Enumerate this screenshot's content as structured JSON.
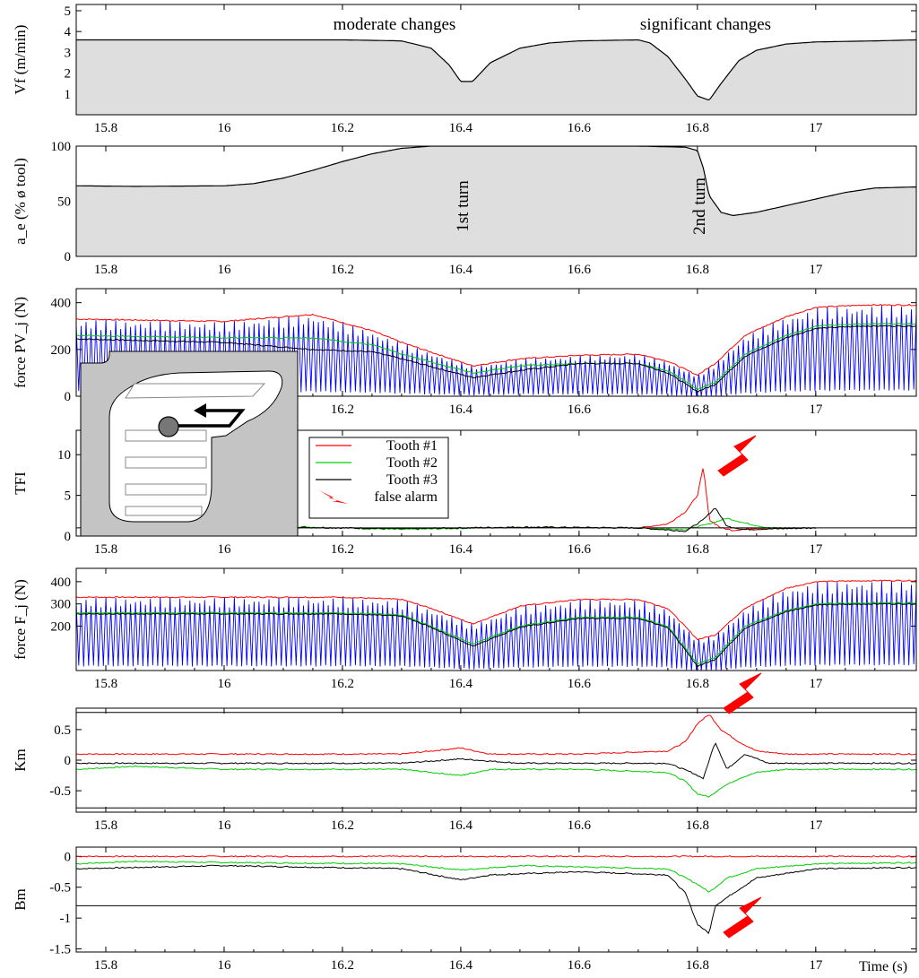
{
  "chart_data": [
    {
      "type": "area",
      "ylabel": "Vf (m/min)",
      "ylim": [
        0,
        5.3
      ],
      "yticks": [
        1,
        2,
        3,
        4,
        5
      ],
      "annotations": [
        "moderate changes",
        "significant changes"
      ],
      "series": [
        {
          "x": [
            15.75,
            16.0,
            16.2,
            16.3,
            16.35,
            16.38,
            16.4,
            16.42,
            16.45,
            16.5,
            16.55,
            16.6,
            16.7,
            16.72,
            16.75,
            16.78,
            16.8,
            16.82,
            16.84,
            16.87,
            16.9,
            16.95,
            17.0,
            17.1,
            17.17
          ],
          "values": [
            3.6,
            3.6,
            3.6,
            3.55,
            3.2,
            2.4,
            1.6,
            1.6,
            2.5,
            3.2,
            3.45,
            3.55,
            3.6,
            3.45,
            2.8,
            1.7,
            0.9,
            0.7,
            1.5,
            2.6,
            3.1,
            3.4,
            3.5,
            3.55,
            3.6
          ]
        }
      ]
    },
    {
      "type": "area",
      "ylabel": "a_e (% ø tool)",
      "ylim": [
        0,
        100
      ],
      "yticks": [
        0,
        50,
        100
      ],
      "annotations": [
        {
          "text": "1st turn",
          "x": 16.4
        },
        {
          "text": "2nd turn",
          "x": 16.8
        }
      ],
      "series": [
        {
          "x": [
            15.75,
            15.85,
            16.0,
            16.05,
            16.1,
            16.15,
            16.2,
            16.25,
            16.3,
            16.35,
            16.5,
            16.6,
            16.7,
            16.78,
            16.8,
            16.81,
            16.82,
            16.84,
            16.86,
            16.9,
            17.0,
            17.05,
            17.1,
            17.17
          ],
          "values": [
            64,
            63.5,
            64,
            66,
            71,
            78,
            86,
            93,
            98,
            100,
            100,
            100,
            100,
            99,
            96,
            80,
            55,
            40,
            37,
            40,
            52,
            58,
            62,
            63
          ]
        }
      ]
    },
    {
      "type": "line",
      "ylabel": "force PV_j (N)",
      "ylim": [
        0,
        460
      ],
      "yticks": [
        0,
        200,
        400
      ],
      "series": [
        {
          "name": "Tooth #1",
          "color": "#ff0000",
          "x": [
            15.75,
            16.0,
            16.15,
            16.25,
            16.3,
            16.42,
            16.5,
            16.6,
            16.7,
            16.75,
            16.8,
            16.83,
            16.88,
            16.95,
            17.0,
            17.08,
            17.17
          ],
          "values": [
            330,
            320,
            350,
            280,
            230,
            130,
            160,
            175,
            180,
            150,
            90,
            140,
            260,
            340,
            380,
            390,
            390
          ]
        },
        {
          "name": "Tooth #2",
          "color": "#00cc00",
          "x": [
            15.75,
            16.0,
            16.15,
            16.25,
            16.3,
            16.42,
            16.5,
            16.6,
            16.7,
            16.75,
            16.8,
            16.83,
            16.88,
            16.95,
            17.0,
            17.08,
            17.17
          ],
          "values": [
            260,
            250,
            250,
            220,
            180,
            100,
            130,
            140,
            140,
            110,
            30,
            60,
            180,
            260,
            300,
            310,
            310
          ]
        },
        {
          "name": "Tooth #3",
          "color": "#000000",
          "x": [
            15.75,
            16.0,
            16.15,
            16.25,
            16.3,
            16.42,
            16.5,
            16.6,
            16.7,
            16.75,
            16.8,
            16.83,
            16.88,
            16.95,
            17.0,
            17.08,
            17.17
          ],
          "values": [
            245,
            230,
            200,
            190,
            160,
            80,
            110,
            140,
            140,
            100,
            20,
            50,
            170,
            250,
            290,
            300,
            300
          ]
        },
        {
          "name": "PV envelope",
          "color": "#0000ff",
          "x": [
            15.75,
            16.0,
            16.15,
            16.25,
            16.3,
            16.42,
            16.5,
            16.6,
            16.7,
            16.75,
            16.8,
            16.83,
            16.88,
            16.95,
            17.0,
            17.08,
            17.17
          ],
          "values": [
            330,
            320,
            350,
            280,
            230,
            130,
            160,
            175,
            180,
            150,
            90,
            140,
            260,
            340,
            380,
            390,
            390
          ]
        }
      ],
      "inset": true
    },
    {
      "type": "line",
      "ylabel": "TFI",
      "ylim": [
        0,
        13
      ],
      "yticks": [
        0,
        5,
        10
      ],
      "threshold": 1,
      "legend": [
        "Tooth #1",
        "Tooth #2",
        "Tooth #3",
        "false alarm"
      ],
      "series": [
        {
          "name": "Tooth #1",
          "color": "#ff0000",
          "x": [
            15.78,
            16.1,
            16.3,
            16.5,
            16.7,
            16.75,
            16.78,
            16.8,
            16.81,
            16.82,
            16.84,
            16.86,
            16.9,
            17.0
          ],
          "values": [
            1,
            1.1,
            0.9,
            1.1,
            1,
            1.5,
            3,
            5,
            8.5,
            2,
            1,
            0.7,
            1,
            1
          ]
        },
        {
          "name": "Tooth #2",
          "color": "#00cc00",
          "x": [
            15.78,
            16.1,
            16.3,
            16.5,
            16.7,
            16.78,
            16.82,
            16.85,
            16.88,
            16.92,
            17.0
          ],
          "values": [
            1,
            1.2,
            0.8,
            1.1,
            1,
            0.8,
            1.5,
            2.2,
            1.6,
            1,
            1
          ]
        },
        {
          "name": "Tooth #3",
          "color": "#000000",
          "x": [
            15.78,
            16.1,
            16.3,
            16.5,
            16.7,
            16.78,
            16.81,
            16.83,
            16.85,
            16.88,
            17.0
          ],
          "values": [
            1,
            1.1,
            0.9,
            1.1,
            1,
            0.6,
            2,
            3.5,
            1.2,
            0.8,
            1
          ]
        }
      ]
    },
    {
      "type": "line",
      "ylabel": "force F_j (N)",
      "ylim": [
        0,
        460
      ],
      "yticks": [
        200,
        300,
        400
      ],
      "series": [
        {
          "name": "Tooth #1",
          "color": "#ff0000",
          "x": [
            15.75,
            16.0,
            16.2,
            16.3,
            16.35,
            16.42,
            16.5,
            16.6,
            16.7,
            16.75,
            16.8,
            16.83,
            16.88,
            16.95,
            17.0,
            17.1,
            17.17
          ],
          "values": [
            330,
            330,
            330,
            320,
            280,
            210,
            290,
            320,
            320,
            280,
            140,
            160,
            280,
            370,
            400,
            405,
            405
          ]
        },
        {
          "name": "Tooth #2",
          "color": "#00cc00",
          "x": [
            15.75,
            16.0,
            16.2,
            16.3,
            16.35,
            16.42,
            16.5,
            16.6,
            16.7,
            16.75,
            16.8,
            16.83,
            16.88,
            16.95,
            17.0,
            17.1,
            17.17
          ],
          "values": [
            260,
            260,
            260,
            250,
            200,
            120,
            200,
            240,
            240,
            200,
            30,
            60,
            200,
            270,
            300,
            305,
            305
          ]
        },
        {
          "name": "Tooth #3",
          "color": "#000000",
          "x": [
            15.75,
            16.0,
            16.2,
            16.3,
            16.35,
            16.42,
            16.5,
            16.6,
            16.7,
            16.75,
            16.8,
            16.83,
            16.88,
            16.95,
            17.0,
            17.1,
            17.17
          ],
          "values": [
            255,
            255,
            255,
            245,
            195,
            110,
            195,
            235,
            235,
            195,
            20,
            50,
            190,
            265,
            295,
            300,
            300
          ]
        },
        {
          "name": "F envelope",
          "color": "#0000ff",
          "x": [
            15.75,
            16.0,
            16.2,
            16.3,
            16.35,
            16.42,
            16.5,
            16.6,
            16.7,
            16.75,
            16.8,
            16.83,
            16.88,
            16.95,
            17.0,
            17.1,
            17.17
          ],
          "values": [
            330,
            330,
            330,
            320,
            280,
            210,
            290,
            320,
            320,
            280,
            140,
            160,
            280,
            370,
            400,
            405,
            405
          ]
        }
      ]
    },
    {
      "type": "line",
      "ylabel": "Km",
      "ylim": [
        -0.85,
        0.85
      ],
      "yticks": [
        -0.5,
        0,
        0.5
      ],
      "thresholds": [
        0.78,
        -0.78
      ],
      "series": [
        {
          "name": "Tooth #1",
          "color": "#ff0000",
          "x": [
            15.75,
            16.0,
            16.3,
            16.4,
            16.45,
            16.6,
            16.75,
            16.78,
            16.8,
            16.82,
            16.84,
            16.87,
            16.9,
            16.95,
            17.0,
            17.17
          ],
          "values": [
            0.1,
            0.1,
            0.1,
            0.2,
            0.1,
            0.1,
            0.15,
            0.3,
            0.6,
            0.75,
            0.5,
            0.3,
            0.15,
            0.1,
            0.1,
            0.1
          ]
        },
        {
          "name": "Tooth #2",
          "color": "#00cc00",
          "x": [
            15.75,
            15.85,
            16.0,
            16.3,
            16.4,
            16.45,
            16.6,
            16.75,
            16.78,
            16.8,
            16.82,
            16.84,
            16.87,
            16.9,
            16.95,
            17.0,
            17.17
          ],
          "values": [
            -0.15,
            -0.1,
            -0.15,
            -0.15,
            -0.25,
            -0.15,
            -0.15,
            -0.2,
            -0.35,
            -0.55,
            -0.6,
            -0.45,
            -0.3,
            -0.2,
            -0.15,
            -0.15,
            -0.15
          ]
        },
        {
          "name": "Tooth #3",
          "color": "#000000",
          "x": [
            15.75,
            16.0,
            16.3,
            16.4,
            16.5,
            16.75,
            16.79,
            16.81,
            16.83,
            16.85,
            16.88,
            16.92,
            17.0,
            17.17
          ],
          "values": [
            -0.05,
            -0.05,
            -0.05,
            0.02,
            -0.05,
            -0.05,
            -0.2,
            -0.3,
            0.3,
            -0.15,
            0.1,
            -0.05,
            -0.05,
            -0.05
          ]
        }
      ]
    },
    {
      "type": "line",
      "ylabel": "Bm",
      "xlabel": "Time (s)",
      "ylim": [
        -1.55,
        0.15
      ],
      "yticks": [
        -1.5,
        -1,
        -0.5,
        0
      ],
      "thresholds": [
        -0.8
      ],
      "series": [
        {
          "name": "Tooth #1",
          "color": "#ff0000",
          "x": [
            15.75,
            17.17
          ],
          "values": [
            0,
            0
          ]
        },
        {
          "name": "Tooth #2",
          "color": "#00cc00",
          "x": [
            15.75,
            15.85,
            16.0,
            16.3,
            16.4,
            16.5,
            16.75,
            16.8,
            16.82,
            16.85,
            16.9,
            17.0,
            17.17
          ],
          "values": [
            -0.12,
            -0.08,
            -0.1,
            -0.12,
            -0.22,
            -0.15,
            -0.2,
            -0.45,
            -0.58,
            -0.35,
            -0.2,
            -0.12,
            -0.1
          ]
        },
        {
          "name": "Tooth #3",
          "color": "#000000",
          "x": [
            15.75,
            16.0,
            16.3,
            16.4,
            16.45,
            16.6,
            16.75,
            16.78,
            16.8,
            16.82,
            16.83,
            16.86,
            16.9,
            17.0,
            17.17
          ],
          "values": [
            -0.2,
            -0.15,
            -0.2,
            -0.38,
            -0.3,
            -0.25,
            -0.3,
            -0.6,
            -1.1,
            -1.25,
            -0.8,
            -0.6,
            -0.35,
            -0.2,
            -0.18
          ]
        }
      ]
    }
  ],
  "x_axis": {
    "xlim": [
      15.75,
      17.17
    ],
    "ticks": [
      15.8,
      16.0,
      16.2,
      16.4,
      16.6,
      16.8,
      17.0
    ],
    "tick_labels": [
      "15.8",
      "16",
      "16.2",
      "16.4",
      "16.6",
      "16.8",
      "17"
    ],
    "xlabel": "Time (s)"
  },
  "legend": {
    "items": [
      {
        "label": "Tooth #1",
        "color": "#ff0000"
      },
      {
        "label": "Tooth #2",
        "color": "#00cc00"
      },
      {
        "label": "Tooth #3",
        "color": "#000000"
      },
      {
        "label": "false alarm",
        "color": "#ff0000"
      }
    ]
  },
  "colors": {
    "fill": "#dedede",
    "force": "#0000ff",
    "tooth1": "#ff0000",
    "tooth2": "#00cc00",
    "tooth3": "#000000",
    "alarm": "#ff0000",
    "inset_bg": "#c4c4c4"
  }
}
